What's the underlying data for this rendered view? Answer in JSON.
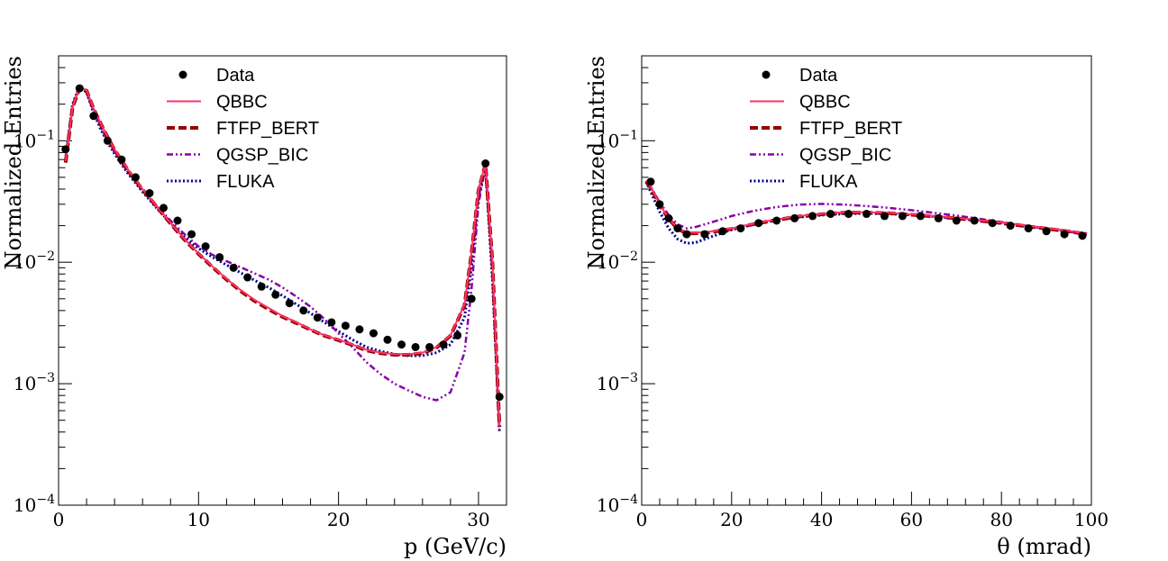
{
  "colors": {
    "data": "#000000",
    "qbbc": "#ff3366",
    "ftfp_bert": "#990000",
    "qgsp_bic": "#8800aa",
    "fluka": "#000088"
  },
  "chart_data": [
    {
      "type": "line",
      "title": "",
      "xlabel": "p (GeV/c)",
      "ylabel": "Normalized Entries",
      "xlim": [
        0,
        32
      ],
      "ylim": [
        0.0001,
        0.5
      ],
      "yscale": "log",
      "x_ticks": [
        0,
        10,
        20,
        30
      ],
      "x_tick_labels": [
        "0",
        "10",
        "20",
        "30"
      ],
      "y_ticks": [
        0.0001,
        0.001,
        0.01,
        0.1
      ],
      "y_tick_labels": [
        {
          "base": "10",
          "exp": "−4"
        },
        {
          "base": "10",
          "exp": "−3"
        },
        {
          "base": "10",
          "exp": "−2"
        },
        {
          "base": "10",
          "exp": "−1"
        }
      ],
      "legend": [
        "Data",
        "QBBC",
        "FTFP_BERT",
        "QGSP_BIC",
        "FLUKA"
      ],
      "legend_position": "top-center",
      "series": [
        {
          "name": "Data",
          "style": "markers",
          "color": "#000000",
          "x": [
            0.5,
            1.5,
            2.5,
            3.5,
            4.5,
            5.5,
            6.5,
            7.5,
            8.5,
            9.5,
            10.5,
            11.5,
            12.5,
            13.5,
            14.5,
            15.5,
            16.5,
            17.5,
            18.5,
            19.5,
            20.5,
            21.5,
            22.5,
            23.5,
            24.5,
            25.5,
            26.5,
            27.5,
            28.5,
            29.5,
            30.5,
            31.5
          ],
          "y": [
            0.085,
            0.27,
            0.16,
            0.1,
            0.07,
            0.05,
            0.037,
            0.028,
            0.022,
            0.017,
            0.0135,
            0.011,
            0.009,
            0.0075,
            0.0063,
            0.0054,
            0.0046,
            0.004,
            0.0035,
            0.0032,
            0.003,
            0.0028,
            0.0026,
            0.0023,
            0.0021,
            0.002,
            0.002,
            0.0021,
            0.0025,
            0.005,
            0.065,
            0.00078
          ]
        },
        {
          "name": "QBBC",
          "style": "solid",
          "color": "#ff3366",
          "x": [
            0.5,
            1,
            1.5,
            2,
            2.5,
            3,
            3.5,
            4,
            4.5,
            5,
            6,
            7,
            8,
            9,
            10,
            11,
            12,
            13,
            14,
            15,
            16,
            17,
            18,
            19,
            20,
            21,
            22,
            23,
            24,
            25,
            26,
            27,
            28,
            29,
            29.5,
            30,
            30.5,
            31,
            31.5
          ],
          "y": [
            0.068,
            0.19,
            0.275,
            0.26,
            0.185,
            0.14,
            0.108,
            0.085,
            0.07,
            0.057,
            0.04,
            0.029,
            0.021,
            0.0155,
            0.0118,
            0.0092,
            0.0073,
            0.0059,
            0.0049,
            0.0042,
            0.0036,
            0.0032,
            0.0028,
            0.0025,
            0.0023,
            0.0021,
            0.0019,
            0.0018,
            0.00175,
            0.00175,
            0.0018,
            0.002,
            0.0025,
            0.0045,
            0.012,
            0.04,
            0.065,
            0.01,
            0.00045
          ]
        },
        {
          "name": "FTFP_BERT",
          "style": "dashed",
          "color": "#990000",
          "x": [
            0.5,
            1,
            1.5,
            2,
            2.5,
            3,
            3.5,
            4,
            4.5,
            5,
            6,
            7,
            8,
            9,
            10,
            11,
            12,
            13,
            14,
            15,
            16,
            17,
            18,
            19,
            20,
            21,
            22,
            23,
            24,
            25,
            26,
            27,
            28,
            29,
            29.5,
            30,
            30.5,
            31,
            31.5
          ],
          "y": [
            0.066,
            0.188,
            0.272,
            0.258,
            0.183,
            0.139,
            0.107,
            0.084,
            0.069,
            0.056,
            0.0395,
            0.0287,
            0.0208,
            0.0153,
            0.0117,
            0.0091,
            0.0072,
            0.0058,
            0.0048,
            0.0041,
            0.00355,
            0.00315,
            0.00278,
            0.00248,
            0.00228,
            0.00208,
            0.00188,
            0.00178,
            0.00173,
            0.00173,
            0.00178,
            0.00198,
            0.00248,
            0.0044,
            0.0118,
            0.039,
            0.064,
            0.0098,
            0.00044
          ]
        },
        {
          "name": "QGSP_BIC",
          "style": "dashdot",
          "color": "#8800aa",
          "x": [
            0.5,
            1,
            1.5,
            2,
            2.5,
            3,
            3.5,
            4,
            4.5,
            5,
            6,
            7,
            8,
            9,
            10,
            11,
            12,
            13,
            14,
            15,
            16,
            17,
            18,
            19,
            20,
            21,
            22,
            23,
            24,
            25,
            26,
            27,
            28,
            29,
            29.5,
            30,
            30.5,
            31,
            31.5
          ],
          "y": [
            0.068,
            0.19,
            0.27,
            0.25,
            0.175,
            0.13,
            0.1,
            0.08,
            0.066,
            0.054,
            0.039,
            0.029,
            0.022,
            0.017,
            0.0135,
            0.0115,
            0.0102,
            0.0091,
            0.0081,
            0.0072,
            0.0062,
            0.0052,
            0.0043,
            0.0034,
            0.0026,
            0.002,
            0.0015,
            0.0012,
            0.001,
            0.00088,
            0.00078,
            0.00073,
            0.00085,
            0.0018,
            0.006,
            0.03,
            0.062,
            0.008,
            0.0004
          ]
        },
        {
          "name": "FLUKA",
          "style": "dotted",
          "color": "#000088",
          "x": [
            0.5,
            1,
            1.5,
            2,
            2.5,
            3,
            3.5,
            4,
            4.5,
            5,
            6,
            7,
            8,
            9,
            10,
            11,
            12,
            13,
            14,
            15,
            16,
            17,
            18,
            19,
            20,
            21,
            22,
            23,
            24,
            25,
            26,
            27,
            28,
            29,
            29.5,
            30,
            30.5,
            31,
            31.5
          ],
          "y": [
            0.07,
            0.2,
            0.28,
            0.25,
            0.17,
            0.125,
            0.097,
            0.078,
            0.064,
            0.053,
            0.038,
            0.028,
            0.021,
            0.016,
            0.013,
            0.011,
            0.0095,
            0.0082,
            0.0071,
            0.0062,
            0.0053,
            0.0045,
            0.0038,
            0.0032,
            0.0027,
            0.0023,
            0.002,
            0.00185,
            0.00175,
            0.0017,
            0.0017,
            0.0018,
            0.0021,
            0.0035,
            0.009,
            0.035,
            0.06,
            0.007,
            0.0004
          ]
        }
      ]
    },
    {
      "type": "line",
      "title": "",
      "xlabel": "θ (mrad)",
      "ylabel": "Normalized Entries",
      "xlim": [
        0,
        100
      ],
      "ylim": [
        0.0001,
        0.5
      ],
      "yscale": "log",
      "x_ticks": [
        0,
        20,
        40,
        60,
        80,
        100
      ],
      "x_tick_labels": [
        "0",
        "20",
        "40",
        "60",
        "80",
        "100"
      ],
      "y_ticks": [
        0.0001,
        0.001,
        0.01,
        0.1
      ],
      "y_tick_labels": [
        {
          "base": "10",
          "exp": "−4"
        },
        {
          "base": "10",
          "exp": "−3"
        },
        {
          "base": "10",
          "exp": "−2"
        },
        {
          "base": "10",
          "exp": "−1"
        }
      ],
      "legend": [
        "Data",
        "QBBC",
        "FTFP_BERT",
        "QGSP_BIC",
        "FLUKA"
      ],
      "legend_position": "top-center",
      "series": [
        {
          "name": "Data",
          "style": "markers",
          "color": "#000000",
          "x": [
            2,
            4,
            6,
            8,
            10,
            14,
            18,
            22,
            26,
            30,
            34,
            38,
            42,
            46,
            50,
            54,
            58,
            62,
            66,
            70,
            74,
            78,
            82,
            86,
            90,
            94,
            98
          ],
          "y": [
            0.046,
            0.03,
            0.023,
            0.019,
            0.017,
            0.017,
            0.018,
            0.019,
            0.021,
            0.022,
            0.023,
            0.024,
            0.025,
            0.025,
            0.025,
            0.024,
            0.024,
            0.024,
            0.023,
            0.022,
            0.022,
            0.021,
            0.02,
            0.019,
            0.018,
            0.017,
            0.0165
          ]
        },
        {
          "name": "QBBC",
          "style": "solid",
          "color": "#ff3366",
          "x": [
            1,
            2,
            4,
            6,
            8,
            10,
            12,
            15,
            20,
            25,
            30,
            35,
            40,
            45,
            50,
            55,
            60,
            65,
            70,
            75,
            80,
            85,
            90,
            95,
            99
          ],
          "y": [
            0.047,
            0.042,
            0.03,
            0.023,
            0.019,
            0.0175,
            0.0175,
            0.0178,
            0.019,
            0.0208,
            0.0225,
            0.024,
            0.025,
            0.0258,
            0.0258,
            0.0255,
            0.0248,
            0.024,
            0.0232,
            0.0222,
            0.0212,
            0.0201,
            0.0191,
            0.0181,
            0.0172
          ]
        },
        {
          "name": "FTFP_BERT",
          "style": "dashed",
          "color": "#990000",
          "x": [
            1,
            2,
            4,
            6,
            8,
            10,
            12,
            15,
            20,
            25,
            30,
            35,
            40,
            45,
            50,
            55,
            60,
            65,
            70,
            75,
            80,
            85,
            90,
            95,
            99
          ],
          "y": [
            0.046,
            0.041,
            0.0295,
            0.0228,
            0.0188,
            0.0173,
            0.0173,
            0.0176,
            0.0188,
            0.0206,
            0.0223,
            0.0238,
            0.0248,
            0.0256,
            0.0256,
            0.0253,
            0.0246,
            0.0238,
            0.023,
            0.022,
            0.021,
            0.0199,
            0.0189,
            0.0179,
            0.017
          ]
        },
        {
          "name": "QGSP_BIC",
          "style": "dashdot",
          "color": "#8800aa",
          "x": [
            1,
            2,
            4,
            6,
            8,
            10,
            12,
            15,
            20,
            25,
            30,
            35,
            40,
            45,
            50,
            55,
            60,
            65,
            70,
            75,
            80,
            85,
            90,
            95,
            99
          ],
          "y": [
            0.047,
            0.042,
            0.031,
            0.0245,
            0.0205,
            0.019,
            0.0195,
            0.021,
            0.024,
            0.0265,
            0.0285,
            0.0298,
            0.0302,
            0.0298,
            0.029,
            0.028,
            0.0268,
            0.0255,
            0.0242,
            0.0228,
            0.0214,
            0.0201,
            0.0189,
            0.0178,
            0.017
          ]
        },
        {
          "name": "FLUKA",
          "style": "dotted",
          "color": "#000088",
          "x": [
            1,
            2,
            4,
            6,
            8,
            10,
            12,
            15,
            20,
            25,
            30,
            35,
            40,
            45,
            50,
            55,
            60,
            65,
            70,
            75,
            80,
            85,
            90,
            95,
            99
          ],
          "y": [
            0.046,
            0.038,
            0.026,
            0.019,
            0.0155,
            0.0143,
            0.0145,
            0.016,
            0.0185,
            0.0205,
            0.0222,
            0.0235,
            0.0244,
            0.025,
            0.0252,
            0.025,
            0.0245,
            0.0238,
            0.023,
            0.022,
            0.021,
            0.02,
            0.019,
            0.018,
            0.0172
          ]
        }
      ]
    }
  ]
}
